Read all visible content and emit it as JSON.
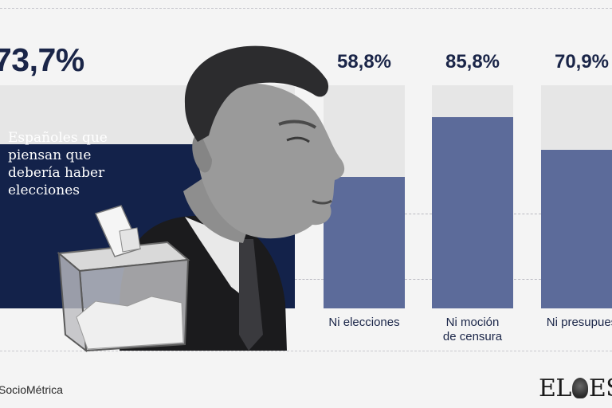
{
  "chart_data": {
    "type": "bar",
    "ylim": [
      0,
      100
    ],
    "grid": true,
    "highlight": {
      "value": 73.7,
      "value_label": "73,7%",
      "caption": "Españoles que piensan que debería haber elecciones"
    },
    "categories": [
      "Ni elecciones",
      "Ni moción de censura",
      "Ni presupuestos"
    ],
    "category_labels": [
      [
        "Ni elecciones"
      ],
      [
        "Ni moción",
        "de censura"
      ],
      [
        "Ni presupues"
      ]
    ],
    "values": [
      58.8,
      85.8,
      70.9
    ],
    "value_labels": [
      "58,8%",
      "85,8%",
      "70,9%"
    ]
  },
  "colors": {
    "highlight_bar": "#13224a",
    "bars": "#5c6b9a",
    "track": "#e6e6e6",
    "text": "#1a2548",
    "background": "#f4f4f4"
  },
  "footer": {
    "source": "SocioMétrica",
    "logo": {
      "left": "EL",
      "right": "ESP",
      "emblem": "lion-emblem-icon"
    }
  },
  "photo": {
    "icon": "politician-photo-icon",
    "ballot_box": "ballot-box-icon"
  }
}
